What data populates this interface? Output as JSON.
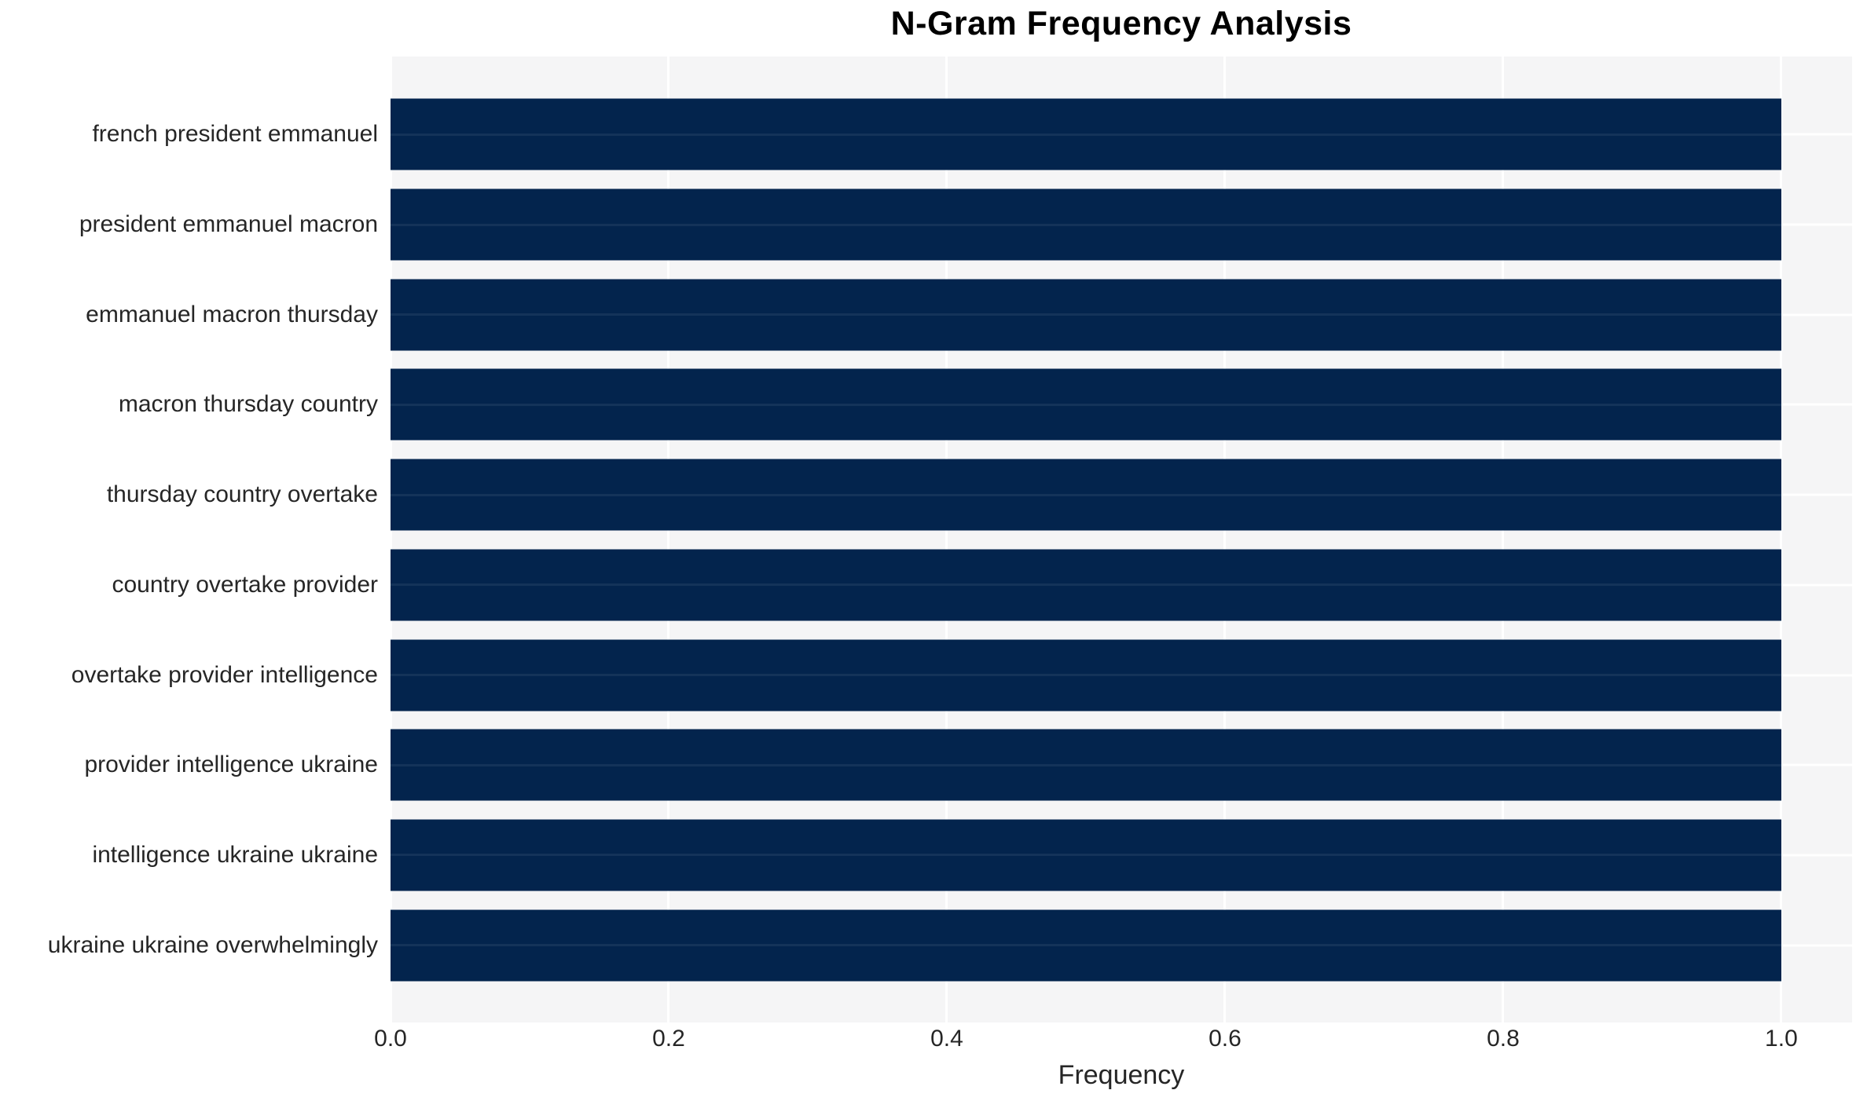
{
  "title": "N-Gram Frequency Analysis",
  "colors": {
    "bar": "#03244d",
    "plot_background": "#f5f5f6",
    "gridline": "#ffffff",
    "text": "#262626",
    "title_text": "#000000",
    "figure_background": "#ffffff"
  },
  "chart_data": {
    "type": "bar",
    "orientation": "horizontal",
    "title": "N-Gram Frequency Analysis",
    "categories": [
      "french president emmanuel",
      "president emmanuel macron",
      "emmanuel macron thursday",
      "macron thursday country",
      "thursday country overtake",
      "country overtake provider",
      "overtake provider intelligence",
      "provider intelligence ukraine",
      "intelligence ukraine ukraine",
      "ukraine ukraine overwhelmingly"
    ],
    "values": [
      1.0,
      1.0,
      1.0,
      1.0,
      1.0,
      1.0,
      1.0,
      1.0,
      1.0,
      1.0
    ],
    "xlabel": "Frequency",
    "ylabel": "",
    "xlim": [
      0.0,
      1.0509
    ],
    "xticks": [
      0.0,
      0.2,
      0.4,
      0.6,
      0.8,
      1.0
    ],
    "grid": true,
    "legend": false
  }
}
